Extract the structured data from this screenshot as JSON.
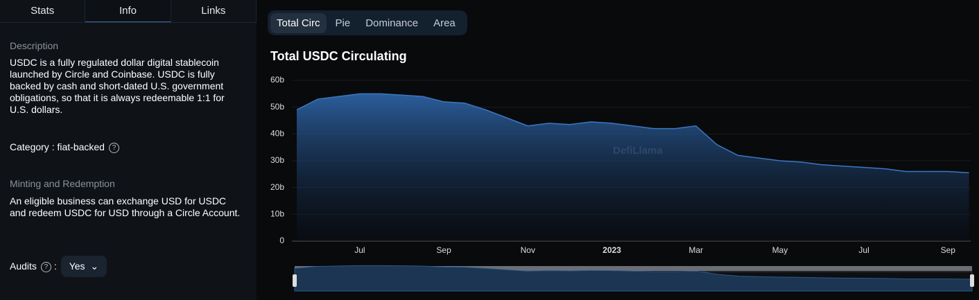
{
  "sidebar": {
    "tabs": [
      "Stats",
      "Info",
      "Links"
    ],
    "active_tab": "Info",
    "description_title": "Description",
    "description": "USDC is a fully regulated dollar digital stablecoin launched by Circle and Coinbase. USDC is fully backed by cash and short-dated U.S. government obligations, so that it is always redeemable 1:1 for U.S. dollars.",
    "category_label": "Category",
    "separator": ":",
    "category_value": "fiat-backed",
    "minting_title": "Minting and Redemption",
    "minting_text": "An eligible business can exchange USD for USDC and redeem USDC for USD through a Circle Account.",
    "audits_label": "Audits",
    "audits_value": "Yes"
  },
  "chart_tabs": [
    "Total Circ",
    "Pie",
    "Dominance",
    "Area"
  ],
  "active_chart_tab": "Total Circ",
  "chart_data": {
    "type": "area",
    "title": "Total USDC Circulating",
    "watermark": "DefiLlama",
    "categories": [
      null,
      null,
      null,
      "Jul",
      null,
      null,
      null,
      "Sep",
      null,
      null,
      null,
      "Nov",
      null,
      null,
      null,
      "2023",
      null,
      null,
      null,
      "Mar",
      null,
      null,
      null,
      "May",
      null,
      null,
      null,
      "Jul",
      null,
      null,
      null,
      "Sep",
      null
    ],
    "values": [
      49,
      53,
      54,
      55,
      55,
      54.5,
      54,
      52,
      51.5,
      49,
      46,
      43,
      44,
      43.5,
      44.5,
      44,
      43,
      42,
      42,
      43,
      36,
      32,
      31,
      30,
      29.5,
      28.5,
      28,
      27.5,
      27,
      26,
      26,
      26,
      25.5
    ],
    "color": "#3a78c4",
    "ylim": [
      0,
      60
    ],
    "yticks": [
      0,
      {
        "value": 10,
        "label": "10b"
      },
      {
        "value": 20,
        "label": "20b"
      },
      {
        "value": 30,
        "label": "30b"
      },
      {
        "value": 40,
        "label": "40b"
      },
      {
        "value": 50,
        "label": "50b"
      },
      {
        "value": 60,
        "label": "60b"
      }
    ],
    "grid": true
  }
}
